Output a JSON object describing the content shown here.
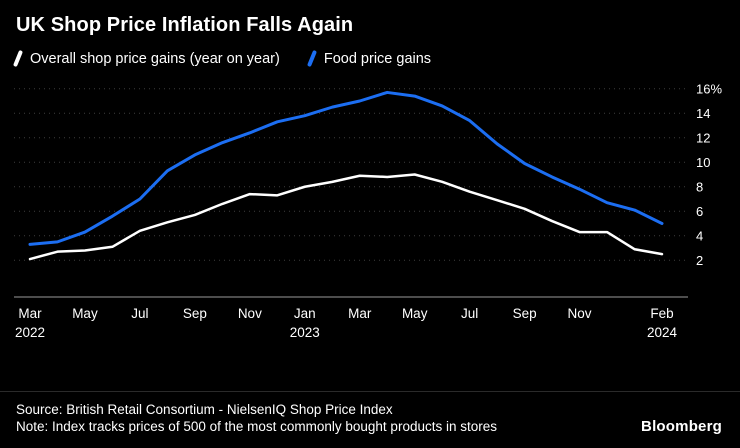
{
  "header": {
    "title": "UK Shop Price Inflation Falls Again"
  },
  "legend": {
    "items": [
      {
        "label": "Overall shop price gains (year on year)",
        "color": "#ffffff"
      },
      {
        "label": "Food price gains",
        "color": "#1c6ef2"
      }
    ]
  },
  "chart_data": {
    "type": "line",
    "title": "UK Shop Price Inflation Falls Again",
    "xlabel": "",
    "ylabel": "",
    "ylim": [
      0,
      16.8
    ],
    "grid": "dotted-horizontal",
    "legend_position": "top-left",
    "categories": [
      "Mar 2022",
      "Apr 2022",
      "May 2022",
      "Jun 2022",
      "Jul 2022",
      "Aug 2022",
      "Sep 2022",
      "Oct 2022",
      "Nov 2022",
      "Dec 2022",
      "Jan 2023",
      "Feb 2023",
      "Mar 2023",
      "Apr 2023",
      "May 2023",
      "Jun 2023",
      "Jul 2023",
      "Aug 2023",
      "Sep 2023",
      "Oct 2023",
      "Nov 2023",
      "Dec 2023",
      "Jan 2024",
      "Feb 2024"
    ],
    "series": [
      {
        "key": "overall-shop-price-gains",
        "name": "Overall shop price gains (year on year)",
        "color": "#ffffff",
        "width": 2.5,
        "values": [
          2.1,
          2.7,
          2.8,
          3.1,
          4.4,
          5.1,
          5.7,
          6.6,
          7.4,
          7.3,
          8.0,
          8.4,
          8.9,
          8.8,
          9.0,
          8.4,
          7.6,
          6.9,
          6.2,
          5.2,
          4.3,
          4.3,
          2.9,
          2.5
        ]
      },
      {
        "key": "food-price-gains",
        "name": "Food price gains",
        "color": "#1c6ef2",
        "width": 3,
        "values": [
          3.3,
          3.5,
          4.3,
          5.6,
          7.0,
          9.3,
          10.6,
          11.6,
          12.4,
          13.3,
          13.8,
          14.5,
          15.0,
          15.7,
          15.4,
          14.6,
          13.4,
          11.5,
          9.9,
          8.8,
          7.8,
          6.7,
          6.1,
          5.0
        ]
      }
    ],
    "yticks": [
      {
        "value": 2,
        "label": "2"
      },
      {
        "value": 4,
        "label": "4"
      },
      {
        "value": 6,
        "label": "6"
      },
      {
        "value": 8,
        "label": "8"
      },
      {
        "value": 10,
        "label": "10"
      },
      {
        "value": 12,
        "label": "12"
      },
      {
        "value": 14,
        "label": "14"
      },
      {
        "value": 16,
        "label": "16%"
      }
    ],
    "xticks": [
      {
        "i": 0,
        "label": "Mar",
        "year": "2022"
      },
      {
        "i": 2,
        "label": "May"
      },
      {
        "i": 4,
        "label": "Jul"
      },
      {
        "i": 6,
        "label": "Sep"
      },
      {
        "i": 8,
        "label": "Nov"
      },
      {
        "i": 10,
        "label": "Jan",
        "year": "2023"
      },
      {
        "i": 12,
        "label": "Mar"
      },
      {
        "i": 14,
        "label": "May"
      },
      {
        "i": 16,
        "label": "Jul"
      },
      {
        "i": 18,
        "label": "Sep"
      },
      {
        "i": 20,
        "label": "Nov"
      },
      {
        "i": 23,
        "label": "Feb",
        "year": "2024"
      }
    ]
  },
  "footer": {
    "source": "Source: British Retail Consortium - NielsenIQ Shop Price Index",
    "note": "Note: Index tracks prices of 500 of the most commonly bought products in stores",
    "brand": "Bloomberg"
  }
}
